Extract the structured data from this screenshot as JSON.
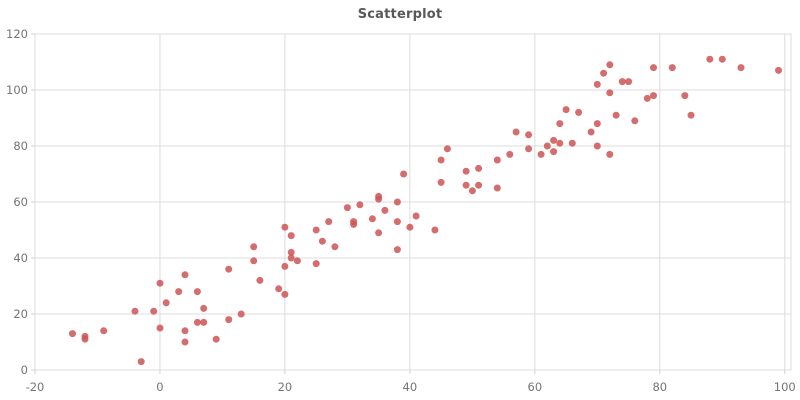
{
  "chart_data": {
    "type": "scatter",
    "title": "Scatterplot",
    "xlabel": "",
    "ylabel": "",
    "xlim": [
      -20,
      101
    ],
    "ylim": [
      0,
      120
    ],
    "x_ticks": [
      -20,
      0,
      20,
      40,
      60,
      80,
      100
    ],
    "y_ticks": [
      0,
      20,
      40,
      60,
      80,
      100,
      120
    ],
    "grid": true,
    "legend": false,
    "marker_radius": 3.5,
    "point_color": "#cc5555",
    "point_opacity": 0.85,
    "colors": {
      "grid": "#dcdcdc",
      "tick": "#d0d0d0",
      "tick_label": "#757575",
      "title": "#595959",
      "background": "#ffffff"
    },
    "series": [
      {
        "name": "points",
        "points": [
          [
            -14,
            13
          ],
          [
            -12,
            12
          ],
          [
            -12,
            11
          ],
          [
            -9,
            14
          ],
          [
            -4,
            21
          ],
          [
            -3,
            3
          ],
          [
            -1,
            21
          ],
          [
            0,
            31
          ],
          [
            0,
            15
          ],
          [
            1,
            24
          ],
          [
            3,
            28
          ],
          [
            4,
            34
          ],
          [
            4,
            14
          ],
          [
            4,
            10
          ],
          [
            6,
            28
          ],
          [
            6,
            17
          ],
          [
            7,
            22
          ],
          [
            7,
            17
          ],
          [
            9,
            11
          ],
          [
            11,
            36
          ],
          [
            11,
            18
          ],
          [
            13,
            20
          ],
          [
            15,
            44
          ],
          [
            15,
            39
          ],
          [
            16,
            32
          ],
          [
            19,
            29
          ],
          [
            20,
            51
          ],
          [
            20,
            37
          ],
          [
            20,
            27
          ],
          [
            21,
            48
          ],
          [
            21,
            42
          ],
          [
            21,
            40
          ],
          [
            22,
            39
          ],
          [
            25,
            50
          ],
          [
            25,
            38
          ],
          [
            26,
            46
          ],
          [
            27,
            53
          ],
          [
            28,
            44
          ],
          [
            30,
            58
          ],
          [
            31,
            53
          ],
          [
            31,
            52
          ],
          [
            32,
            59
          ],
          [
            34,
            54
          ],
          [
            35,
            62
          ],
          [
            35,
            61
          ],
          [
            35,
            49
          ],
          [
            36,
            57
          ],
          [
            38,
            60
          ],
          [
            38,
            53
          ],
          [
            38,
            43
          ],
          [
            39,
            70
          ],
          [
            40,
            51
          ],
          [
            41,
            55
          ],
          [
            44,
            50
          ],
          [
            45,
            75
          ],
          [
            45,
            67
          ],
          [
            46,
            79
          ],
          [
            49,
            71
          ],
          [
            49,
            66
          ],
          [
            50,
            64
          ],
          [
            51,
            72
          ],
          [
            51,
            66
          ],
          [
            54,
            75
          ],
          [
            54,
            65
          ],
          [
            56,
            77
          ],
          [
            57,
            85
          ],
          [
            59,
            84
          ],
          [
            59,
            79
          ],
          [
            61,
            77
          ],
          [
            62,
            80
          ],
          [
            63,
            82
          ],
          [
            63,
            78
          ],
          [
            64,
            88
          ],
          [
            64,
            81
          ],
          [
            65,
            93
          ],
          [
            66,
            81
          ],
          [
            67,
            92
          ],
          [
            69,
            85
          ],
          [
            70,
            102
          ],
          [
            70,
            88
          ],
          [
            70,
            80
          ],
          [
            71,
            106
          ],
          [
            72,
            109
          ],
          [
            72,
            99
          ],
          [
            72,
            77
          ],
          [
            73,
            91
          ],
          [
            74,
            103
          ],
          [
            75,
            103
          ],
          [
            76,
            89
          ],
          [
            78,
            97
          ],
          [
            79,
            108
          ],
          [
            79,
            98
          ],
          [
            82,
            108
          ],
          [
            84,
            98
          ],
          [
            85,
            91
          ],
          [
            88,
            111
          ],
          [
            90,
            111
          ],
          [
            93,
            108
          ],
          [
            99,
            107
          ]
        ]
      }
    ]
  }
}
